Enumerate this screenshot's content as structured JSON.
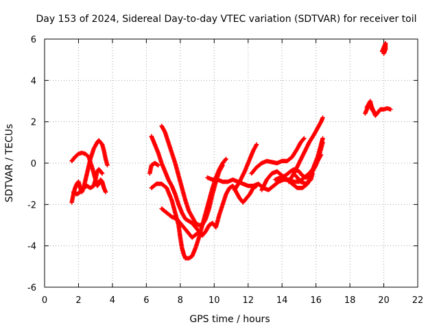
{
  "chart_data": {
    "type": "scatter",
    "title": "Day 153 of 2024, Sidereal Day-to-day VTEC variation (SDTVAR) for receiver toil",
    "xlabel": "GPS time / hours",
    "ylabel": "SDTVAR / TECUs",
    "xlim": [
      0,
      22
    ],
    "ylim": [
      -6,
      6
    ],
    "xticks": [
      0,
      2,
      4,
      6,
      8,
      10,
      12,
      14,
      16,
      18,
      20,
      22
    ],
    "yticks": [
      -6,
      -4,
      -2,
      0,
      2,
      4,
      6
    ],
    "grid": true,
    "marker": "+",
    "color": "#ff0000",
    "series": [
      {
        "name": "s1",
        "points": [
          [
            1.6,
            0.1
          ],
          [
            1.8,
            0.3
          ],
          [
            2.0,
            0.45
          ],
          [
            2.2,
            0.5
          ],
          [
            2.4,
            0.45
          ],
          [
            2.6,
            0.3
          ],
          [
            2.8,
            -0.2
          ],
          [
            3.0,
            -0.8
          ],
          [
            3.1,
            -1.1
          ],
          [
            3.2,
            -1.0
          ],
          [
            3.3,
            -0.8
          ],
          [
            3.4,
            -0.9
          ],
          [
            3.5,
            -1.2
          ],
          [
            3.6,
            -1.4
          ]
        ]
      },
      {
        "name": "s2",
        "points": [
          [
            1.6,
            -1.9
          ],
          [
            1.7,
            -1.5
          ],
          [
            1.8,
            -1.2
          ],
          [
            1.9,
            -1.0
          ],
          [
            2.0,
            -0.9
          ],
          [
            2.1,
            -1.2
          ],
          [
            2.2,
            -1.4
          ],
          [
            2.3,
            -1.2
          ],
          [
            2.5,
            -0.5
          ],
          [
            2.7,
            0.2
          ],
          [
            2.9,
            0.7
          ],
          [
            3.1,
            1.0
          ],
          [
            3.2,
            1.1
          ],
          [
            3.4,
            0.9
          ],
          [
            3.5,
            0.6
          ],
          [
            3.6,
            0.2
          ],
          [
            3.7,
            -0.1
          ]
        ]
      },
      {
        "name": "s3",
        "points": [
          [
            1.7,
            -1.4
          ],
          [
            1.9,
            -1.5
          ],
          [
            2.1,
            -1.4
          ],
          [
            2.3,
            -1.2
          ],
          [
            2.5,
            -1.1
          ],
          [
            2.7,
            -1.2
          ],
          [
            2.9,
            -1.1
          ],
          [
            3.0,
            -0.8
          ],
          [
            3.1,
            -0.4
          ],
          [
            3.2,
            -0.3
          ],
          [
            3.3,
            -0.4
          ],
          [
            3.4,
            -0.5
          ]
        ]
      },
      {
        "name": "s4",
        "points": [
          [
            6.2,
            -0.5
          ],
          [
            6.3,
            -0.1
          ],
          [
            6.5,
            0.0
          ],
          [
            6.7,
            -0.1
          ]
        ]
      },
      {
        "name": "s5",
        "points": [
          [
            6.3,
            1.3
          ],
          [
            6.5,
            0.9
          ],
          [
            6.7,
            0.5
          ],
          [
            6.9,
            0.0
          ],
          [
            7.1,
            -0.4
          ],
          [
            7.3,
            -0.8
          ],
          [
            7.5,
            -1.1
          ],
          [
            7.7,
            -1.5
          ],
          [
            7.9,
            -2.0
          ],
          [
            8.1,
            -2.4
          ],
          [
            8.3,
            -2.7
          ],
          [
            8.5,
            -2.8
          ],
          [
            8.7,
            -2.9
          ],
          [
            8.9,
            -3.1
          ],
          [
            9.1,
            -3.3
          ],
          [
            9.3,
            -3.5
          ],
          [
            9.5,
            -3.3
          ],
          [
            9.7,
            -3.0
          ],
          [
            9.9,
            -2.9
          ],
          [
            10.1,
            -3.1
          ],
          [
            10.3,
            -2.5
          ],
          [
            10.5,
            -2.0
          ],
          [
            10.7,
            -1.5
          ],
          [
            10.9,
            -1.2
          ],
          [
            11.1,
            -1.1
          ],
          [
            11.3,
            -1.4
          ],
          [
            11.5,
            -1.7
          ],
          [
            11.7,
            -1.9
          ],
          [
            11.9,
            -1.7
          ],
          [
            12.1,
            -1.5
          ],
          [
            12.3,
            -1.2
          ],
          [
            12.5,
            -1.1
          ]
        ]
      },
      {
        "name": "s6",
        "points": [
          [
            6.9,
            1.8
          ],
          [
            7.1,
            1.5
          ],
          [
            7.3,
            1.0
          ],
          [
            7.5,
            0.5
          ],
          [
            7.7,
            0.0
          ],
          [
            7.9,
            -0.6
          ],
          [
            8.1,
            -1.2
          ],
          [
            8.3,
            -1.8
          ],
          [
            8.5,
            -2.3
          ],
          [
            8.7,
            -2.6
          ],
          [
            8.9,
            -2.9
          ],
          [
            9.1,
            -3.0
          ],
          [
            9.3,
            -3.0
          ],
          [
            9.5,
            -2.7
          ],
          [
            9.7,
            -2.2
          ],
          [
            9.9,
            -1.5
          ],
          [
            10.1,
            -0.9
          ],
          [
            10.3,
            -0.4
          ],
          [
            10.5,
            -0.1
          ]
        ]
      },
      {
        "name": "s7",
        "points": [
          [
            6.3,
            -1.2
          ],
          [
            6.6,
            -1.0
          ],
          [
            6.9,
            -1.0
          ],
          [
            7.2,
            -1.2
          ],
          [
            7.5,
            -1.8
          ],
          [
            7.7,
            -2.4
          ],
          [
            7.9,
            -3.0
          ],
          [
            8.0,
            -3.6
          ],
          [
            8.1,
            -4.1
          ],
          [
            8.2,
            -4.4
          ],
          [
            8.3,
            -4.6
          ],
          [
            8.5,
            -4.6
          ],
          [
            8.7,
            -4.5
          ],
          [
            8.9,
            -4.1
          ],
          [
            9.1,
            -3.6
          ],
          [
            9.3,
            -3.0
          ],
          [
            9.5,
            -2.4
          ],
          [
            9.7,
            -1.8
          ],
          [
            9.9,
            -1.2
          ],
          [
            10.1,
            -0.7
          ],
          [
            10.3,
            -0.3
          ],
          [
            10.5,
            0.0
          ],
          [
            10.7,
            0.2
          ]
        ]
      },
      {
        "name": "s8",
        "points": [
          [
            6.9,
            -2.2
          ],
          [
            7.2,
            -2.4
          ],
          [
            7.5,
            -2.6
          ],
          [
            7.8,
            -2.7
          ],
          [
            8.1,
            -3.0
          ],
          [
            8.4,
            -3.3
          ],
          [
            8.7,
            -3.6
          ],
          [
            9.0,
            -3.4
          ]
        ]
      },
      {
        "name": "s9",
        "points": [
          [
            9.6,
            -0.7
          ],
          [
            9.9,
            -0.8
          ],
          [
            10.2,
            -0.8
          ],
          [
            10.5,
            -0.9
          ],
          [
            10.8,
            -0.9
          ],
          [
            11.1,
            -0.8
          ],
          [
            11.4,
            -0.9
          ],
          [
            11.7,
            -1.0
          ],
          [
            12.0,
            -1.1
          ],
          [
            12.3,
            -1.1
          ],
          [
            12.6,
            -1.0
          ],
          [
            12.9,
            -1.2
          ],
          [
            13.2,
            -1.3
          ],
          [
            13.5,
            -1.1
          ],
          [
            13.8,
            -0.9
          ],
          [
            14.1,
            -0.8
          ],
          [
            14.4,
            -0.8
          ],
          [
            14.7,
            -0.9
          ],
          [
            15.0,
            -0.9
          ],
          [
            15.3,
            -0.7
          ],
          [
            15.6,
            -0.5
          ],
          [
            15.9,
            -0.2
          ],
          [
            16.1,
            0.1
          ],
          [
            16.3,
            0.4
          ]
        ]
      },
      {
        "name": "s10",
        "points": [
          [
            11.2,
            -1.3
          ],
          [
            11.5,
            -0.9
          ],
          [
            11.8,
            -0.4
          ],
          [
            12.1,
            0.2
          ],
          [
            12.3,
            0.6
          ],
          [
            12.5,
            0.9
          ]
        ]
      },
      {
        "name": "s11",
        "points": [
          [
            12.2,
            -0.5
          ],
          [
            12.5,
            -0.2
          ],
          [
            12.8,
            0.0
          ],
          [
            13.1,
            0.1
          ],
          [
            13.4,
            0.05
          ],
          [
            13.7,
            0.0
          ],
          [
            14.0,
            0.1
          ],
          [
            14.3,
            0.1
          ],
          [
            14.6,
            0.3
          ],
          [
            14.9,
            0.7
          ],
          [
            15.1,
            1.0
          ],
          [
            15.3,
            1.2
          ]
        ]
      },
      {
        "name": "s12",
        "points": [
          [
            12.8,
            -1.3
          ],
          [
            13.1,
            -0.8
          ],
          [
            13.4,
            -0.5
          ],
          [
            13.7,
            -0.4
          ],
          [
            14.0,
            -0.6
          ],
          [
            14.3,
            -0.8
          ],
          [
            14.6,
            -1.0
          ],
          [
            14.9,
            -1.2
          ],
          [
            15.2,
            -1.2
          ],
          [
            15.5,
            -1.0
          ],
          [
            15.7,
            -0.6
          ],
          [
            15.9,
            -0.1
          ],
          [
            16.1,
            0.3
          ],
          [
            16.3,
            0.9
          ],
          [
            16.4,
            1.2
          ]
        ]
      },
      {
        "name": "s13",
        "points": [
          [
            13.6,
            -0.8
          ],
          [
            13.9,
            -0.7
          ],
          [
            14.2,
            -0.6
          ],
          [
            14.5,
            -0.4
          ],
          [
            14.7,
            -0.3
          ],
          [
            15.0,
            -0.4
          ],
          [
            15.2,
            -0.6
          ],
          [
            15.4,
            -0.7
          ],
          [
            15.6,
            -0.6
          ],
          [
            15.8,
            -0.4
          ],
          [
            16.0,
            -0.1
          ],
          [
            16.2,
            0.4
          ],
          [
            16.4,
            1.0
          ]
        ]
      },
      {
        "name": "s14",
        "points": [
          [
            14.4,
            -0.9
          ],
          [
            14.7,
            -0.5
          ],
          [
            15.0,
            0.0
          ],
          [
            15.3,
            0.5
          ],
          [
            15.6,
            1.0
          ],
          [
            15.9,
            1.4
          ],
          [
            16.1,
            1.7
          ],
          [
            16.3,
            2.0
          ],
          [
            16.4,
            2.2
          ]
        ]
      },
      {
        "name": "s15",
        "points": [
          [
            14.8,
            -0.6
          ],
          [
            15.1,
            -0.9
          ],
          [
            15.4,
            -1.0
          ],
          [
            15.7,
            -0.8
          ],
          [
            15.8,
            -0.5
          ]
        ]
      },
      {
        "name": "s16",
        "points": [
          [
            18.9,
            2.4
          ],
          [
            19.0,
            2.6
          ],
          [
            19.1,
            2.8
          ],
          [
            19.2,
            2.9
          ],
          [
            19.3,
            2.7
          ],
          [
            19.4,
            2.5
          ],
          [
            19.5,
            2.3
          ],
          [
            19.6,
            2.4
          ],
          [
            19.7,
            2.5
          ],
          [
            19.8,
            2.6
          ],
          [
            19.9,
            2.6
          ],
          [
            20.0,
            2.6
          ],
          [
            20.2,
            2.65
          ],
          [
            20.4,
            2.6
          ]
        ]
      },
      {
        "name": "s17",
        "points": [
          [
            19.0,
            2.7
          ],
          [
            19.2,
            3.0
          ],
          [
            19.3,
            2.6
          ],
          [
            19.4,
            2.5
          ]
        ]
      },
      {
        "name": "s18",
        "points": [
          [
            19.9,
            5.4
          ],
          [
            20.0,
            5.6
          ],
          [
            20.1,
            5.8
          ],
          [
            20.1,
            5.5
          ],
          [
            20.0,
            5.3
          ]
        ]
      }
    ]
  }
}
